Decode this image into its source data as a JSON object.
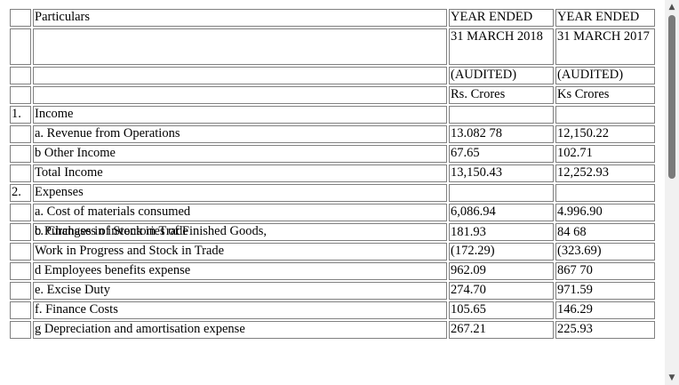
{
  "header": {
    "particulars": "Particulars",
    "col1_year": "YEAR ENDED",
    "col2_year": "YEAR ENDED",
    "col1_date": "31 MARCH 2018",
    "col2_date": "31 MARCH 2017",
    "col1_audit": "(AUDITED)",
    "col2_audit": "(AUDITED)",
    "col1_unit": "Rs. Crores",
    "col2_unit": "Ks Crores"
  },
  "rows": [
    {
      "no": "1.",
      "label": "Income",
      "v1": "",
      "v2": ""
    },
    {
      "no": "",
      "label": "a. Revenue from Operations",
      "v1": "13.082 78",
      "v2": "12,150.22"
    },
    {
      "no": "",
      "label": "b Other Income",
      "v1": "67.65",
      "v2": "102.71"
    },
    {
      "no": "",
      "label": "Total Income",
      "v1": "13,150.43",
      "v2": "12,252.93"
    },
    {
      "no": "2.",
      "label": "Expenses",
      "v1": "",
      "v2": ""
    },
    {
      "no": "",
      "label": "a. Cost of materials consumed",
      "v1": "6,086.94",
      "v2": "4.996.90"
    },
    {
      "no": "",
      "label": "b Purchases of Stock in Trade",
      "label_extra": "c. Changes in inventories of Finished Goods,",
      "v1": "181.93",
      "v2": "84 68"
    },
    {
      "no": "",
      "label": "Work in Progress and Stock in Trade",
      "v1": "(172.29)",
      "v2": "(323.69)"
    },
    {
      "no": "",
      "label": "d Employees benefits expense",
      "v1": "962.09",
      "v2": "867 70"
    },
    {
      "no": "",
      "label": "e. Excise Duty",
      "v1": "274.70",
      "v2": "971.59"
    },
    {
      "no": "",
      "label": "f. Finance Costs",
      "v1": "105.65",
      "v2": "146.29"
    },
    {
      "no": "",
      "label": "g Depreciation and amortisation expense",
      "v1": "267.21",
      "v2": "225.93"
    }
  ],
  "scrollbar": {
    "up_icon": "▲",
    "down_icon": "▼"
  }
}
